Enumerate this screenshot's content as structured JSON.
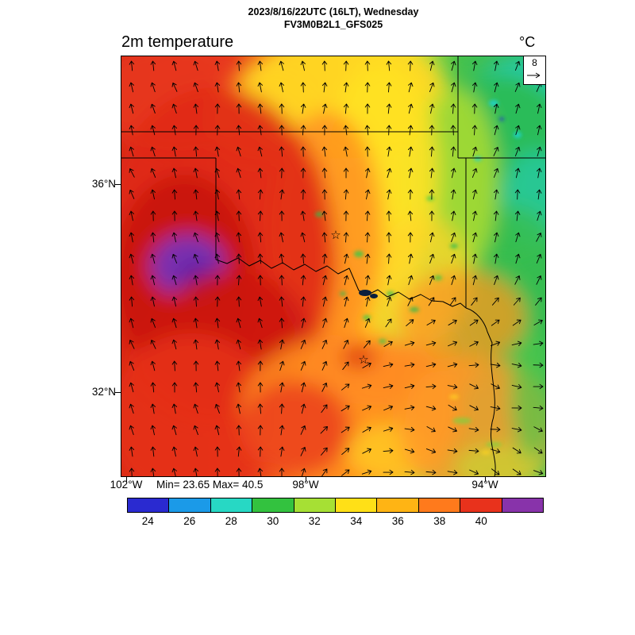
{
  "header": {
    "datetime_line": "2023/8/16/22UTC (16LT), Wednesday",
    "model_line": "FV3M0B2L1_GFS025"
  },
  "plot": {
    "title": "2m temperature",
    "units_label": "°C",
    "wind_ref_label": "8"
  },
  "axes": {
    "y_ticks": [
      {
        "label": "36°N"
      },
      {
        "label": "32°N"
      }
    ],
    "x_ticks": [
      {
        "label": "102°W"
      },
      {
        "label": "98°W"
      },
      {
        "label": "94°W"
      }
    ]
  },
  "stats": {
    "min_max": "Min= 23.65 Max= 40.5"
  },
  "icons": {
    "star_marker": "☆"
  },
  "chart_data": {
    "type": "heatmap",
    "title": "2m temperature",
    "units": "°C",
    "datetime": "2023/8/16/22UTC (16LT), Wednesday",
    "model": "FV3M0B2L1_GFS025",
    "min": 23.65,
    "max": 40.5,
    "lat_ticks": [
      "36°N",
      "32°N"
    ],
    "lon_ticks": [
      "102°W",
      "98°W",
      "94°W"
    ],
    "wind_vectors": {
      "reference_ms": 8
    },
    "colorbar": {
      "tick_labels": [
        24,
        26,
        28,
        30,
        32,
        34,
        36,
        38,
        40
      ],
      "colors": [
        "#2a2ad0",
        "#1b9ae8",
        "#27d8c4",
        "#33c23f",
        "#a6e034",
        "#ffe017",
        "#ffb414",
        "#ff7a1c",
        "#e8321c",
        "#8833aa"
      ],
      "unlabeled_top_box": true
    }
  }
}
